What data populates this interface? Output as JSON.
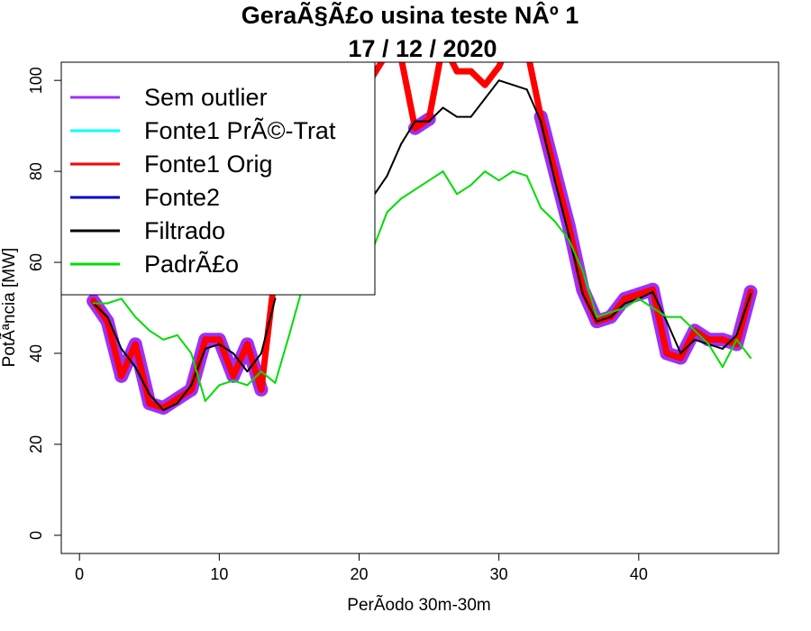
{
  "chart_data": {
    "type": "line",
    "title": "GeraÃ§Ã£o usina teste NÂº 1",
    "subtitle": "17 / 12 / 2020",
    "xlabel": "PerÃ­odo 30m-30m",
    "ylabel": "PotÃªncia [MW]",
    "xlim": [
      -1.3,
      50
    ],
    "ylim": [
      -4,
      104
    ],
    "xticks": [
      "0",
      "10",
      "20",
      "30",
      "40"
    ],
    "yticks": [
      "0",
      "20",
      "40",
      "60",
      "80",
      "100"
    ],
    "legend_position": "top-left",
    "series": [
      {
        "name": "Sem outlier",
        "color": "#9b30ff",
        "x": [
          1,
          2,
          3,
          4,
          5,
          6,
          7,
          8,
          9,
          10,
          11,
          12,
          13,
          24,
          25,
          33,
          34,
          35,
          36,
          37,
          38,
          39,
          40,
          41,
          42,
          43,
          44,
          45,
          46,
          47,
          48
        ],
        "values": [
          51.5,
          47,
          35,
          42,
          29,
          28,
          30,
          32,
          43,
          43,
          35,
          42,
          32,
          89.5,
          91.5,
          92,
          80,
          68,
          54,
          47,
          48,
          52,
          53,
          54,
          40,
          39,
          45,
          43,
          43,
          42,
          53.5
        ]
      },
      {
        "name": "Fonte1 PrÃ©-Trat",
        "color": "#00ffff",
        "x": [],
        "values": []
      },
      {
        "name": "Fonte1 Orig",
        "color": "#ff0000",
        "x": [
          1,
          2,
          3,
          4,
          5,
          6,
          7,
          8,
          9,
          10,
          11,
          12,
          13,
          14,
          20,
          21,
          22,
          23,
          24,
          25,
          26,
          27,
          28,
          29,
          30,
          31,
          32,
          33,
          34,
          35,
          36,
          37,
          38,
          39,
          40,
          41,
          42,
          43,
          44,
          45,
          46,
          47,
          48
        ],
        "values": [
          51.5,
          47,
          35,
          42,
          29,
          28,
          30,
          32,
          43,
          43,
          35,
          42,
          32,
          58,
          110,
          101,
          106,
          105,
          89.5,
          91.5,
          108,
          102,
          102,
          99,
          103,
          110,
          107,
          92,
          80,
          68,
          54,
          47,
          48,
          52,
          53,
          54,
          40,
          39,
          45,
          43,
          43,
          42,
          53.5
        ]
      },
      {
        "name": "Fonte2",
        "color": "#0000cd",
        "x": [],
        "values": []
      },
      {
        "name": "Filtrado",
        "color": "#000000",
        "x": [
          1,
          2,
          3,
          4,
          5,
          6,
          7,
          8,
          9,
          10,
          11,
          12,
          13,
          14,
          20,
          21,
          22,
          23,
          24,
          25,
          26,
          27,
          28,
          29,
          30,
          31,
          32,
          33,
          34,
          35,
          36,
          37,
          38,
          39,
          40,
          41,
          42,
          43,
          44,
          45,
          46,
          47,
          48
        ],
        "values": [
          51,
          48,
          41,
          37,
          31,
          27.5,
          29,
          33,
          41,
          42,
          40,
          36,
          40,
          52,
          74.5,
          74.5,
          79,
          86,
          91,
          91,
          94,
          92,
          92,
          96,
          100,
          99,
          98,
          91,
          78,
          66,
          53,
          47,
          48,
          51,
          52,
          53.5,
          47,
          40,
          43,
          42,
          41,
          44,
          53
        ]
      },
      {
        "name": "PadrÃ£o",
        "color": "#00dd00",
        "x": [
          1,
          2,
          3,
          4,
          5,
          6,
          7,
          8,
          9,
          10,
          11,
          12,
          13,
          14,
          15,
          16,
          17,
          18,
          19,
          20,
          21,
          22,
          23,
          24,
          25,
          26,
          27,
          28,
          29,
          30,
          31,
          32,
          33,
          34,
          35,
          36,
          37,
          38,
          39,
          40,
          41,
          42,
          43,
          44,
          45,
          46,
          47,
          48
        ],
        "values": [
          51,
          51,
          52,
          48,
          45,
          43,
          44,
          40,
          29.5,
          33,
          34,
          33,
          36,
          33.5,
          44,
          55,
          62,
          63,
          64,
          65,
          63,
          71,
          74,
          76,
          78,
          80,
          75,
          77,
          80,
          78,
          80,
          79,
          72,
          69,
          65,
          58,
          48,
          49,
          50,
          52,
          50,
          48,
          48,
          45,
          42,
          37,
          43,
          39
        ]
      }
    ]
  }
}
